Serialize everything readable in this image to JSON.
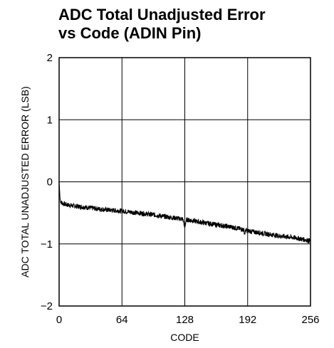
{
  "chart_data": {
    "type": "line",
    "title_lines": [
      "ADC Total Unadjusted Error",
      "vs Code (ADIN Pin)"
    ],
    "xlabel": "CODE",
    "ylabel": "ADC TOTAL UNADJUSTED ERROR (LSB)",
    "xlim": [
      0,
      256
    ],
    "ylim": [
      -2,
      2
    ],
    "xticks": [
      0,
      64,
      128,
      192,
      256
    ],
    "yticks": [
      -2,
      -1,
      0,
      1,
      2
    ],
    "xtick_labels": [
      "0",
      "64",
      "128",
      "192",
      "256"
    ],
    "ytick_labels": [
      "−2",
      "−1",
      "0",
      "1",
      "2"
    ],
    "grid": true,
    "series": [
      {
        "x": [
          0,
          1,
          2,
          4,
          8,
          16,
          32,
          48,
          64,
          80,
          96,
          112,
          126,
          127,
          128,
          129,
          130,
          144,
          160,
          176,
          188,
          189,
          190,
          192,
          208,
          224,
          240,
          256
        ],
        "y": [
          0.0,
          -0.28,
          -0.33,
          -0.35,
          -0.37,
          -0.39,
          -0.42,
          -0.45,
          -0.47,
          -0.5,
          -0.53,
          -0.57,
          -0.6,
          -0.66,
          -0.75,
          -0.64,
          -0.61,
          -0.65,
          -0.69,
          -0.73,
          -0.77,
          -0.84,
          -0.78,
          -0.79,
          -0.83,
          -0.87,
          -0.9,
          -0.95
        ],
        "noise_band": 0.04,
        "color": "#000000"
      }
    ]
  }
}
